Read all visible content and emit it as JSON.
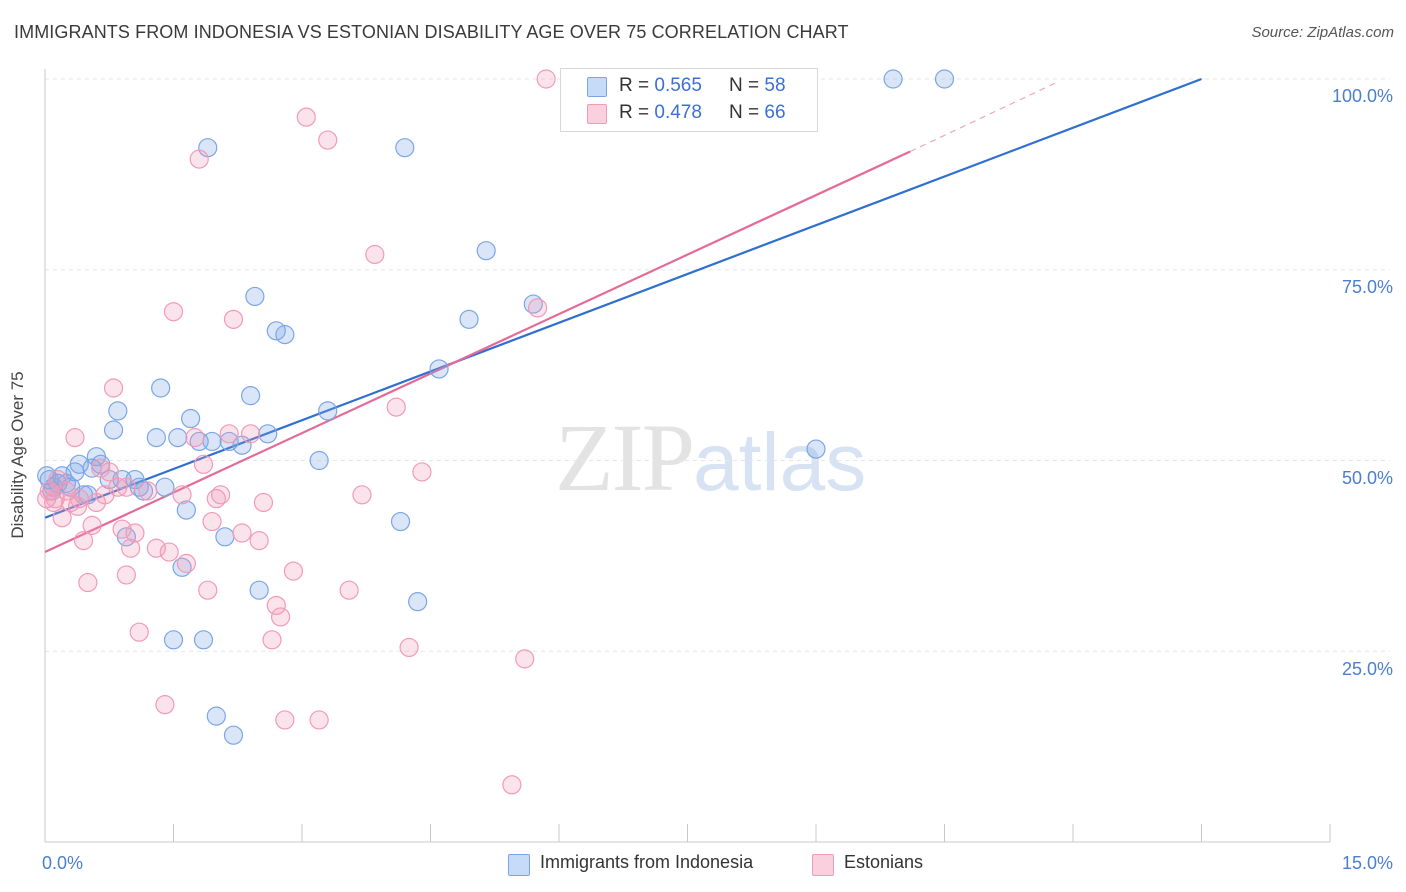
{
  "title": "IMMIGRANTS FROM INDONESIA VS ESTONIAN DISABILITY AGE OVER 75 CORRELATION CHART",
  "source": "Source: ZipAtlas.com",
  "watermark": {
    "zip": "ZIP",
    "atlas": "atlas"
  },
  "legend": {
    "rows": [
      {
        "r_label": "R = ",
        "r_value": "0.565",
        "n_label": "N = ",
        "n_value": "58",
        "color": "#a8c6f0"
      },
      {
        "r_label": "R = ",
        "r_value": "0.478",
        "n_label": "N = ",
        "n_value": "66",
        "color": "#f5b8cc"
      }
    ]
  },
  "bottom_legend": [
    {
      "label": "Immigrants from Indonesia",
      "color": "#b9d2f5"
    },
    {
      "label": "Estonians",
      "color": "#f9c9d8"
    }
  ],
  "chart_data": {
    "type": "scatter",
    "title": "IMMIGRANTS FROM INDONESIA VS ESTONIAN DISABILITY AGE OVER 75 CORRELATION CHART",
    "xlabel": "",
    "ylabel": "Disability Age Over 75",
    "xlim": [
      0,
      15
    ],
    "ylim": [
      0,
      105
    ],
    "x_tick_labels": [
      "0.0%",
      "15.0%"
    ],
    "y_ticks": [
      25,
      50,
      75,
      100
    ],
    "y_tick_labels": [
      "25.0%",
      "50.0%",
      "75.0%",
      "100.0%"
    ],
    "grid": true,
    "legend_position": "top-center",
    "series": [
      {
        "name": "Immigrants from Indonesia",
        "color": "#7aa6e6",
        "trend_color": "#2f6fcf",
        "trend": {
          "x0": 0,
          "y0": 42.5,
          "x1": 13.5,
          "y1": 100
        },
        "points": [
          [
            0.02,
            48.0
          ],
          [
            0.05,
            47.5
          ],
          [
            0.1,
            46.5
          ],
          [
            0.15,
            47.0
          ],
          [
            0.2,
            48.0
          ],
          [
            0.25,
            47.0
          ],
          [
            0.3,
            46.5
          ],
          [
            0.35,
            48.5
          ],
          [
            0.4,
            49.5
          ],
          [
            0.5,
            45.5
          ],
          [
            0.55,
            49.0
          ],
          [
            0.6,
            50.5
          ],
          [
            0.65,
            49.5
          ],
          [
            0.75,
            47.5
          ],
          [
            0.8,
            54.0
          ],
          [
            0.85,
            56.5
          ],
          [
            0.9,
            47.5
          ],
          [
            0.95,
            40.0
          ],
          [
            1.05,
            47.5
          ],
          [
            1.1,
            46.5
          ],
          [
            1.15,
            46.0
          ],
          [
            1.3,
            53.0
          ],
          [
            1.35,
            59.5
          ],
          [
            1.4,
            46.5
          ],
          [
            1.55,
            53.0
          ],
          [
            1.6,
            36.0
          ],
          [
            1.65,
            43.5
          ],
          [
            1.7,
            55.5
          ],
          [
            1.8,
            52.5
          ],
          [
            1.85,
            26.5
          ],
          [
            1.9,
            91.0
          ],
          [
            1.95,
            52.5
          ],
          [
            2.0,
            16.5
          ],
          [
            2.1,
            40.0
          ],
          [
            2.15,
            52.5
          ],
          [
            2.2,
            14.0
          ],
          [
            2.3,
            52.0
          ],
          [
            2.4,
            58.5
          ],
          [
            2.45,
            71.5
          ],
          [
            2.5,
            33.0
          ],
          [
            2.6,
            53.5
          ],
          [
            2.7,
            67.0
          ],
          [
            2.8,
            66.5
          ],
          [
            3.2,
            50.0
          ],
          [
            3.3,
            56.5
          ],
          [
            4.15,
            42.0
          ],
          [
            4.2,
            91.0
          ],
          [
            4.35,
            31.5
          ],
          [
            4.6,
            62.0
          ],
          [
            4.95,
            68.5
          ],
          [
            5.15,
            77.5
          ],
          [
            5.7,
            70.5
          ],
          [
            9.0,
            51.5
          ],
          [
            9.9,
            100.0
          ],
          [
            10.5,
            100.0
          ],
          [
            0.08,
            46.0
          ],
          [
            0.45,
            45.5
          ],
          [
            1.5,
            26.5
          ]
        ]
      },
      {
        "name": "Estonians",
        "color": "#f29ab8",
        "trend_color": "#e46a98",
        "trend": {
          "x0": 0,
          "y0": 38.0,
          "x1": 10.1,
          "y1": 90.5
        },
        "trend_extension": {
          "x0": 10.1,
          "y0": 90.5,
          "x1": 11.8,
          "y1": 99.5
        },
        "points": [
          [
            0.02,
            45.0
          ],
          [
            0.05,
            46.0
          ],
          [
            0.1,
            44.5
          ],
          [
            0.15,
            47.5
          ],
          [
            0.2,
            42.5
          ],
          [
            0.25,
            46.0
          ],
          [
            0.3,
            44.5
          ],
          [
            0.35,
            53.0
          ],
          [
            0.4,
            45.0
          ],
          [
            0.45,
            39.5
          ],
          [
            0.5,
            34.0
          ],
          [
            0.55,
            41.5
          ],
          [
            0.6,
            44.5
          ],
          [
            0.65,
            49.0
          ],
          [
            0.7,
            45.5
          ],
          [
            0.75,
            48.5
          ],
          [
            0.8,
            59.5
          ],
          [
            0.85,
            46.5
          ],
          [
            0.9,
            41.0
          ],
          [
            0.95,
            35.0
          ],
          [
            1.0,
            38.5
          ],
          [
            1.05,
            40.5
          ],
          [
            1.1,
            27.5
          ],
          [
            1.2,
            46.0
          ],
          [
            1.3,
            38.5
          ],
          [
            1.4,
            18.0
          ],
          [
            1.45,
            38.0
          ],
          [
            1.5,
            69.5
          ],
          [
            1.6,
            45.5
          ],
          [
            1.65,
            36.5
          ],
          [
            1.75,
            53.0
          ],
          [
            1.8,
            89.5
          ],
          [
            1.85,
            49.5
          ],
          [
            1.9,
            33.0
          ],
          [
            1.95,
            42.0
          ],
          [
            2.05,
            45.5
          ],
          [
            2.15,
            53.5
          ],
          [
            2.2,
            68.5
          ],
          [
            2.3,
            40.5
          ],
          [
            2.4,
            53.5
          ],
          [
            2.5,
            39.5
          ],
          [
            2.55,
            44.5
          ],
          [
            2.65,
            26.5
          ],
          [
            2.7,
            31.0
          ],
          [
            2.75,
            29.5
          ],
          [
            2.8,
            16.0
          ],
          [
            2.9,
            35.5
          ],
          [
            3.05,
            95.0
          ],
          [
            3.2,
            16.0
          ],
          [
            3.3,
            92.0
          ],
          [
            3.55,
            33.0
          ],
          [
            3.7,
            45.5
          ],
          [
            3.85,
            77.0
          ],
          [
            4.1,
            57.0
          ],
          [
            4.25,
            25.5
          ],
          [
            4.4,
            48.5
          ],
          [
            5.45,
            7.5
          ],
          [
            5.6,
            24.0
          ],
          [
            5.75,
            70.0
          ],
          [
            5.85,
            100.0
          ],
          [
            7.9,
            100.0
          ],
          [
            8.2,
            100.0
          ],
          [
            0.12,
            45.0
          ],
          [
            0.38,
            44.0
          ],
          [
            0.95,
            46.5
          ],
          [
            2.0,
            45.0
          ]
        ]
      }
    ]
  }
}
